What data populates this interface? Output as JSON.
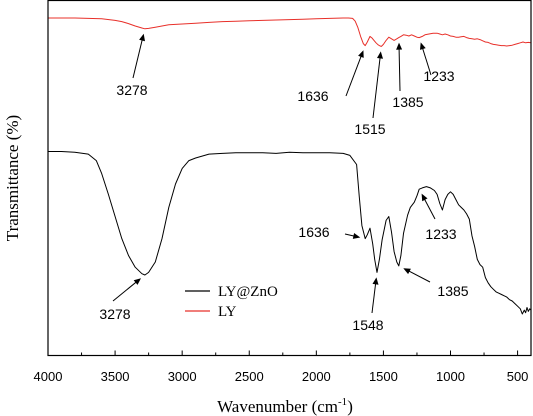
{
  "chart_data": {
    "type": "line",
    "xlabel": "Wavenumber (cm",
    "xlabel_sup": "-1",
    "xlabel_end": ")",
    "ylabel": "Transmittance (%)",
    "xlim": [
      4000,
      400
    ],
    "x_reversed": true,
    "x_ticks": [
      "4000",
      "3500",
      "3000",
      "2500",
      "2000",
      "1500",
      "1000",
      "500"
    ],
    "legend": {
      "placement": "bottom-center"
    },
    "series": [
      {
        "name": "LY@ZnO",
        "color": "#000000",
        "points": [
          [
            4000,
            0.95
          ],
          [
            3900,
            0.95
          ],
          [
            3800,
            0.945
          ],
          [
            3700,
            0.93
          ],
          [
            3640,
            0.88
          ],
          [
            3600,
            0.78
          ],
          [
            3550,
            0.62
          ],
          [
            3500,
            0.45
          ],
          [
            3450,
            0.28
          ],
          [
            3400,
            0.15
          ],
          [
            3350,
            0.06
          ],
          [
            3300,
            0.01
          ],
          [
            3278,
            0.0
          ],
          [
            3250,
            0.02
          ],
          [
            3200,
            0.1
          ],
          [
            3150,
            0.28
          ],
          [
            3100,
            0.52
          ],
          [
            3050,
            0.7
          ],
          [
            3000,
            0.82
          ],
          [
            2950,
            0.88
          ],
          [
            2900,
            0.9
          ],
          [
            2800,
            0.93
          ],
          [
            2700,
            0.935
          ],
          [
            2600,
            0.94
          ],
          [
            2500,
            0.94
          ],
          [
            2400,
            0.94
          ],
          [
            2300,
            0.935
          ],
          [
            2200,
            0.945
          ],
          [
            2100,
            0.94
          ],
          [
            2000,
            0.94
          ],
          [
            1900,
            0.94
          ],
          [
            1800,
            0.935
          ],
          [
            1750,
            0.92
          ],
          [
            1700,
            0.85
          ],
          [
            1680,
            0.6
          ],
          [
            1660,
            0.38
          ],
          [
            1636,
            0.28
          ],
          [
            1620,
            0.31
          ],
          [
            1600,
            0.36
          ],
          [
            1580,
            0.24
          ],
          [
            1565,
            0.12
          ],
          [
            1548,
            0.02
          ],
          [
            1530,
            0.12
          ],
          [
            1510,
            0.27
          ],
          [
            1480,
            0.42
          ],
          [
            1460,
            0.45
          ],
          [
            1440,
            0.33
          ],
          [
            1420,
            0.18
          ],
          [
            1400,
            0.1
          ],
          [
            1385,
            0.07
          ],
          [
            1370,
            0.15
          ],
          [
            1350,
            0.32
          ],
          [
            1320,
            0.46
          ],
          [
            1300,
            0.52
          ],
          [
            1270,
            0.56
          ],
          [
            1250,
            0.61
          ],
          [
            1233,
            0.66
          ],
          [
            1210,
            0.67
          ],
          [
            1180,
            0.68
          ],
          [
            1150,
            0.67
          ],
          [
            1120,
            0.65
          ],
          [
            1100,
            0.62
          ],
          [
            1080,
            0.55
          ],
          [
            1060,
            0.5
          ],
          [
            1040,
            0.58
          ],
          [
            1020,
            0.62
          ],
          [
            1000,
            0.64
          ],
          [
            980,
            0.62
          ],
          [
            960,
            0.58
          ],
          [
            940,
            0.54
          ],
          [
            920,
            0.52
          ],
          [
            900,
            0.5
          ],
          [
            880,
            0.47
          ],
          [
            860,
            0.43
          ],
          [
            840,
            0.3
          ],
          [
            820,
            0.22
          ],
          [
            800,
            0.12
          ],
          [
            780,
            0.08
          ],
          [
            760,
            0.06
          ],
          [
            740,
            -0.02
          ],
          [
            720,
            -0.06
          ],
          [
            700,
            -0.09
          ],
          [
            680,
            -0.11
          ],
          [
            660,
            -0.13
          ],
          [
            640,
            -0.14
          ],
          [
            620,
            -0.15
          ],
          [
            600,
            -0.16
          ],
          [
            580,
            -0.17
          ],
          [
            560,
            -0.19
          ],
          [
            540,
            -0.2
          ],
          [
            520,
            -0.22
          ],
          [
            500,
            -0.24
          ],
          [
            480,
            -0.26
          ],
          [
            465,
            -0.3
          ],
          [
            450,
            -0.27
          ],
          [
            440,
            -0.29
          ],
          [
            430,
            -0.25
          ],
          [
            420,
            -0.28
          ],
          [
            410,
            -0.26
          ],
          [
            400,
            -0.27
          ]
        ]
      },
      {
        "name": "LY",
        "color": "#e8302a",
        "points": [
          [
            4000,
            1.0
          ],
          [
            3800,
            1.0
          ],
          [
            3700,
            0.995
          ],
          [
            3600,
            0.99
          ],
          [
            3500,
            0.97
          ],
          [
            3450,
            0.955
          ],
          [
            3400,
            0.93
          ],
          [
            3350,
            0.9
          ],
          [
            3300,
            0.875
          ],
          [
            3278,
            0.865
          ],
          [
            3250,
            0.87
          ],
          [
            3200,
            0.885
          ],
          [
            3150,
            0.9
          ],
          [
            3100,
            0.915
          ],
          [
            3050,
            0.92
          ],
          [
            3000,
            0.925
          ],
          [
            2950,
            0.93
          ],
          [
            2900,
            0.935
          ],
          [
            2800,
            0.945
          ],
          [
            2700,
            0.955
          ],
          [
            2600,
            0.96
          ],
          [
            2500,
            0.965
          ],
          [
            2400,
            0.97
          ],
          [
            2300,
            0.975
          ],
          [
            2200,
            0.98
          ],
          [
            2100,
            0.985
          ],
          [
            2000,
            0.99
          ],
          [
            1900,
            0.995
          ],
          [
            1800,
            1.0
          ],
          [
            1760,
            1.0
          ],
          [
            1730,
            0.995
          ],
          [
            1710,
            0.96
          ],
          [
            1690,
            0.88
          ],
          [
            1670,
            0.77
          ],
          [
            1650,
            0.68
          ],
          [
            1636,
            0.655
          ],
          [
            1620,
            0.7
          ],
          [
            1600,
            0.77
          ],
          [
            1585,
            0.75
          ],
          [
            1570,
            0.72
          ],
          [
            1555,
            0.69
          ],
          [
            1540,
            0.665
          ],
          [
            1525,
            0.65
          ],
          [
            1515,
            0.645
          ],
          [
            1500,
            0.67
          ],
          [
            1480,
            0.72
          ],
          [
            1460,
            0.76
          ],
          [
            1440,
            0.74
          ],
          [
            1420,
            0.72
          ],
          [
            1400,
            0.74
          ],
          [
            1385,
            0.755
          ],
          [
            1370,
            0.77
          ],
          [
            1350,
            0.79
          ],
          [
            1330,
            0.785
          ],
          [
            1310,
            0.775
          ],
          [
            1290,
            0.79
          ],
          [
            1270,
            0.775
          ],
          [
            1250,
            0.76
          ],
          [
            1233,
            0.755
          ],
          [
            1210,
            0.77
          ],
          [
            1190,
            0.79
          ],
          [
            1160,
            0.8
          ],
          [
            1130,
            0.81
          ],
          [
            1100,
            0.81
          ],
          [
            1080,
            0.8
          ],
          [
            1060,
            0.79
          ],
          [
            1040,
            0.8
          ],
          [
            1020,
            0.79
          ],
          [
            1000,
            0.775
          ],
          [
            980,
            0.77
          ],
          [
            960,
            0.76
          ],
          [
            940,
            0.76
          ],
          [
            920,
            0.765
          ],
          [
            900,
            0.77
          ],
          [
            880,
            0.755
          ],
          [
            860,
            0.745
          ],
          [
            840,
            0.74
          ],
          [
            820,
            0.735
          ],
          [
            800,
            0.74
          ],
          [
            780,
            0.73
          ],
          [
            760,
            0.715
          ],
          [
            740,
            0.7
          ],
          [
            720,
            0.695
          ],
          [
            700,
            0.68
          ],
          [
            680,
            0.67
          ],
          [
            660,
            0.665
          ],
          [
            640,
            0.66
          ],
          [
            620,
            0.655
          ],
          [
            600,
            0.655
          ],
          [
            580,
            0.65
          ],
          [
            560,
            0.655
          ],
          [
            540,
            0.66
          ],
          [
            520,
            0.67
          ],
          [
            500,
            0.68
          ],
          [
            480,
            0.69
          ],
          [
            460,
            0.7
          ],
          [
            440,
            0.69
          ],
          [
            420,
            0.695
          ],
          [
            400,
            0.69
          ]
        ]
      }
    ],
    "annotations": [
      {
        "label": "3278",
        "series": "LY",
        "x": 3278
      },
      {
        "label": "1636",
        "series": "LY",
        "x": 1636
      },
      {
        "label": "1515",
        "series": "LY",
        "x": 1515
      },
      {
        "label": "1385",
        "series": "LY",
        "x": 1385
      },
      {
        "label": "1233",
        "series": "LY",
        "x": 1233
      },
      {
        "label": "3278",
        "series": "LY@ZnO",
        "x": 3278
      },
      {
        "label": "1636",
        "series": "LY@ZnO",
        "x": 1636
      },
      {
        "label": "1548",
        "series": "LY@ZnO",
        "x": 1548
      },
      {
        "label": "1385",
        "series": "LY@ZnO",
        "x": 1385
      },
      {
        "label": "1233",
        "series": "LY@ZnO",
        "x": 1233
      }
    ]
  }
}
